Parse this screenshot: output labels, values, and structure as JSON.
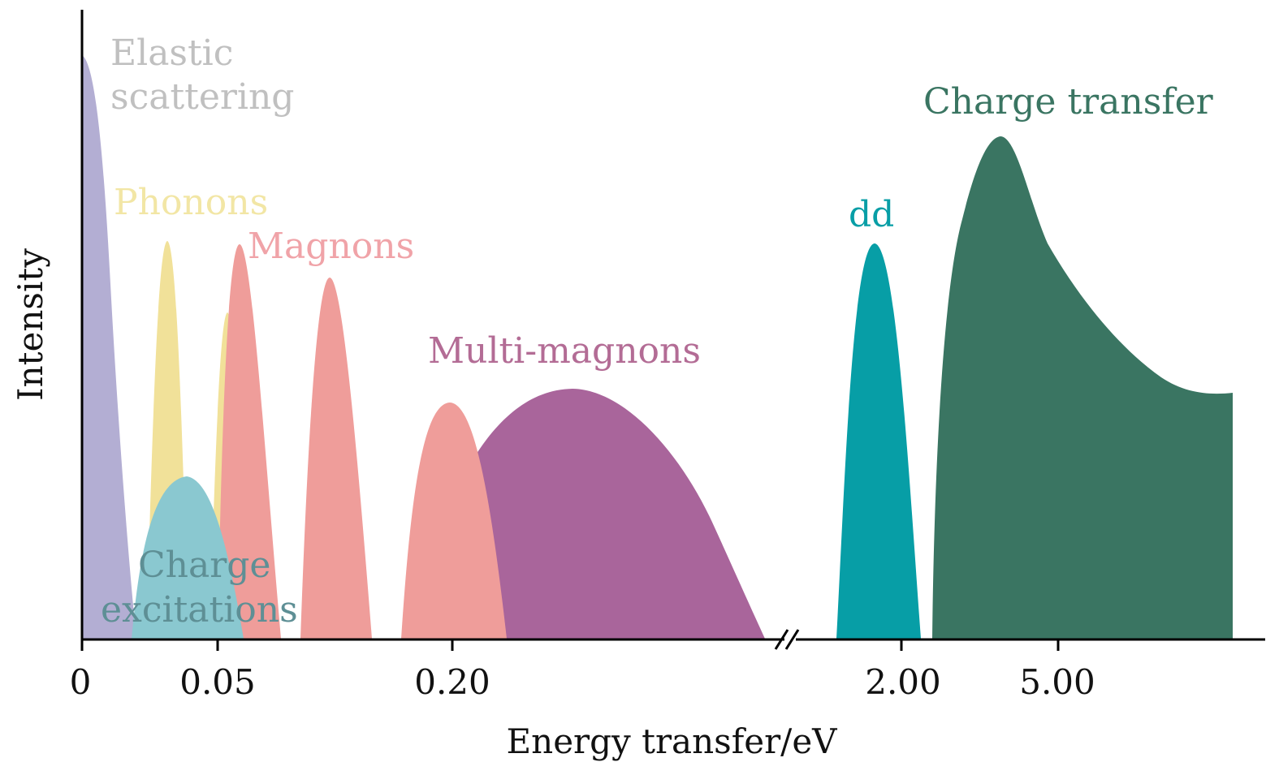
{
  "axes": {
    "xlabel": "Energy transfer/eV",
    "ylabel": "Intensity",
    "ticks": [
      "0",
      "0.05",
      "0.20",
      "2.00",
      "5.00"
    ]
  },
  "labels": {
    "elastic_line1": "Elastic",
    "elastic_line2": "scattering",
    "phonons": "Phonons",
    "magnons": "Magnons",
    "multi_magnons": "Multi-magnons",
    "charge_line1": "Charge",
    "charge_line2": "excitations",
    "dd": "dd",
    "charge_transfer": "Charge transfer"
  },
  "colors": {
    "elastic": "#b3aed3",
    "elastic_label": "#c0c0c0",
    "phonons": "#f1e199",
    "phonons_label": "#f2e6a5",
    "magnons": "#ef9d9a",
    "magnons_label": "#f0a3a8",
    "multi_magnons": "#a9659b",
    "multi_magnons_label": "#b36c95",
    "charge_excitations": "#8ac8d0",
    "charge_excitations_label": "#5e8f95",
    "dd": "#079ea6",
    "charge_transfer": "#3a7562"
  }
}
